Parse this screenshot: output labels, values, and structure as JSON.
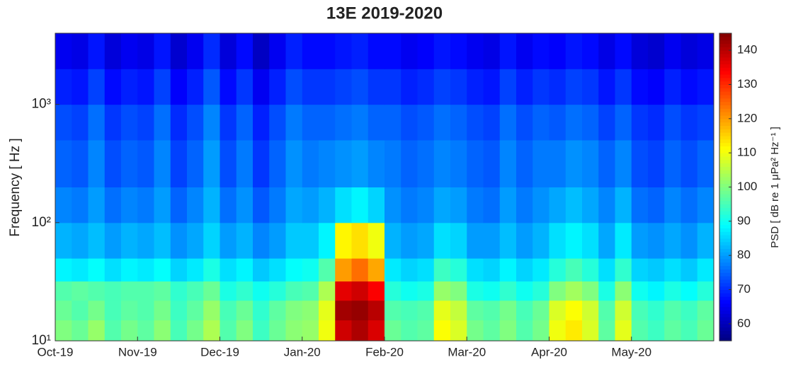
{
  "chart_data": {
    "type": "spectrogram",
    "title": "13E 2019-2020",
    "ylabel": "Frequency [ Hz ]",
    "yscale": "log",
    "xlim": [
      0,
      40
    ],
    "xticks": [
      {
        "value": 0,
        "label": "Oct-19"
      },
      {
        "value": 5,
        "label": "Nov-19"
      },
      {
        "value": 10,
        "label": "Dec-19"
      },
      {
        "value": 15,
        "label": "Jan-20"
      },
      {
        "value": 20,
        "label": "Feb-20"
      },
      {
        "value": 25,
        "label": "Mar-20"
      },
      {
        "value": 30,
        "label": "Apr-20"
      },
      {
        "value": 35,
        "label": "May-20"
      }
    ],
    "ylim": [
      10,
      4000
    ],
    "yticks": [
      {
        "value": 10,
        "label": "10¹"
      },
      {
        "value": 100,
        "label": "10²"
      },
      {
        "value": 1000,
        "label": "10³"
      }
    ],
    "y_edges": [
      10,
      15,
      22,
      32,
      50,
      100,
      200,
      500,
      1000,
      2000,
      4000
    ],
    "z": [
      [
        100,
        98,
        102,
        96,
        99,
        97,
        101,
        95,
        99,
        104,
        96,
        100,
        94,
        98,
        101,
        102,
        110,
        138,
        141,
        137,
        98,
        96,
        97,
        111,
        108,
        99,
        97,
        100,
        96,
        99,
        110,
        113,
        108,
        97,
        109,
        96,
        94,
        97,
        95,
        98
      ],
      [
        98,
        96,
        99,
        95,
        97,
        96,
        99,
        94,
        97,
        102,
        95,
        98,
        93,
        97,
        100,
        101,
        109,
        142,
        143,
        140,
        96,
        95,
        96,
        109,
        106,
        97,
        96,
        99,
        95,
        98,
        108,
        111,
        107,
        96,
        107,
        95,
        93,
        96,
        94,
        97
      ],
      [
        96,
        97,
        96,
        95,
        96,
        96,
        97,
        93,
        95,
        98,
        91,
        93,
        90,
        92,
        95,
        96,
        104,
        136,
        138,
        134,
        92,
        90,
        91,
        102,
        100,
        91,
        90,
        93,
        90,
        92,
        100,
        103,
        100,
        91,
        101,
        90,
        88,
        91,
        89,
        92
      ],
      [
        88,
        87,
        89,
        86,
        88,
        87,
        89,
        85,
        87,
        91,
        86,
        88,
        84,
        86,
        89,
        90,
        96,
        120,
        124,
        119,
        87,
        85,
        86,
        94,
        92,
        86,
        85,
        88,
        85,
        87,
        92,
        95,
        92,
        86,
        93,
        85,
        84,
        86,
        84,
        87
      ],
      [
        82,
        81,
        83,
        80,
        82,
        81,
        83,
        79,
        81,
        85,
        80,
        82,
        78,
        80,
        84,
        84,
        88,
        112,
        114,
        110,
        82,
        80,
        81,
        86,
        85,
        80,
        80,
        83,
        80,
        82,
        86,
        88,
        86,
        81,
        87,
        80,
        79,
        81,
        79,
        82
      ],
      [
        78,
        77,
        80,
        76,
        78,
        77,
        80,
        75,
        78,
        82,
        76,
        79,
        74,
        77,
        81,
        80,
        82,
        86,
        88,
        85,
        79,
        77,
        78,
        81,
        80,
        77,
        76,
        80,
        77,
        79,
        81,
        83,
        81,
        78,
        82,
        76,
        75,
        78,
        76,
        78
      ],
      [
        75,
        74,
        78,
        73,
        75,
        74,
        78,
        72,
        75,
        80,
        73,
        77,
        71,
        75,
        79,
        77,
        78,
        79,
        80,
        78,
        77,
        75,
        76,
        78,
        77,
        75,
        74,
        78,
        75,
        77,
        77,
        79,
        78,
        75,
        78,
        73,
        72,
        75,
        73,
        75
      ],
      [
        73,
        72,
        76,
        71,
        73,
        72,
        76,
        70,
        73,
        78,
        71,
        75,
        69,
        73,
        77,
        75,
        75,
        76,
        77,
        75,
        75,
        73,
        74,
        76,
        75,
        73,
        72,
        76,
        73,
        75,
        74,
        76,
        75,
        72,
        75,
        71,
        70,
        73,
        71,
        72
      ],
      [
        69,
        68,
        72,
        67,
        69,
        68,
        72,
        66,
        69,
        74,
        67,
        71,
        65,
        69,
        73,
        71,
        71,
        72,
        73,
        71,
        71,
        69,
        70,
        72,
        71,
        69,
        68,
        72,
        69,
        71,
        70,
        72,
        71,
        68,
        71,
        67,
        66,
        69,
        67,
        68
      ],
      [
        65,
        64,
        68,
        63,
        65,
        64,
        68,
        62,
        65,
        70,
        63,
        67,
        61,
        65,
        69,
        67,
        67,
        68,
        69,
        67,
        67,
        65,
        66,
        68,
        67,
        65,
        64,
        68,
        65,
        67,
        66,
        68,
        67,
        64,
        67,
        63,
        62,
        65,
        63,
        64
      ]
    ],
    "colormap": "jet",
    "clim": [
      55,
      145
    ],
    "cticks": [
      60,
      70,
      80,
      90,
      100,
      110,
      120,
      130,
      140
    ],
    "clabel": "PSD [ dB re 1 μPa² Hz⁻¹ ]"
  }
}
